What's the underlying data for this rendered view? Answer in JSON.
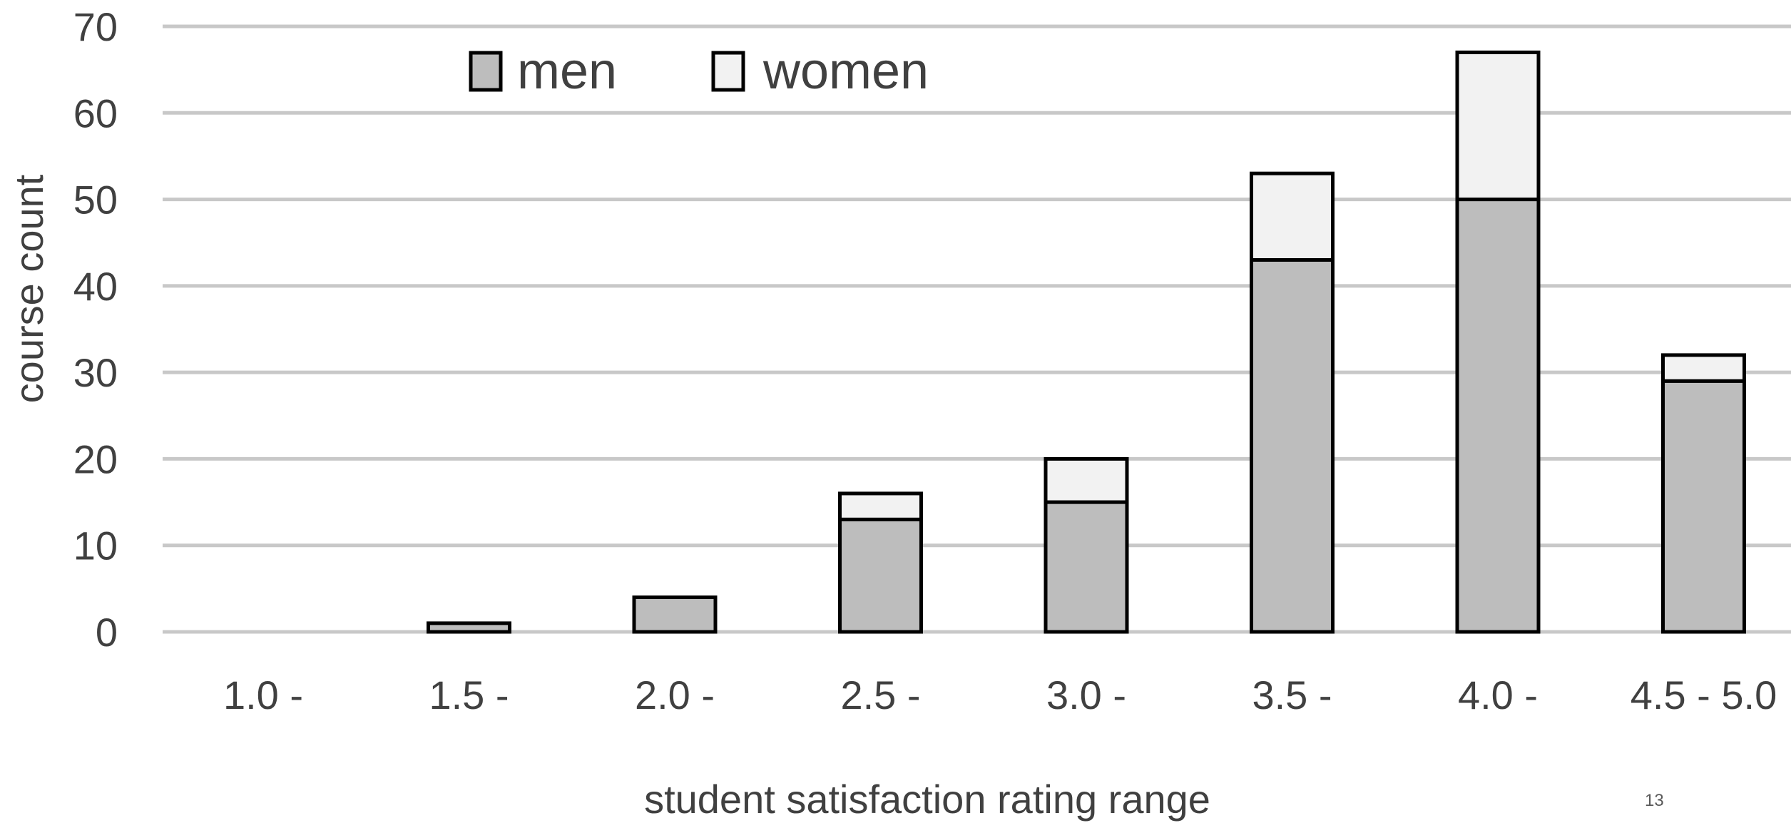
{
  "chart_data": {
    "type": "bar",
    "stacked": true,
    "categories": [
      "1.0 -",
      "1.5 -",
      "2.0 -",
      "2.5 -",
      "3.0 -",
      "3.5 -",
      "4.0 -",
      "4.5 - 5.0"
    ],
    "series": [
      {
        "name": "men",
        "values": [
          0,
          1,
          4,
          13,
          15,
          43,
          50,
          29
        ],
        "color": "#bdbdbd"
      },
      {
        "name": "women",
        "values": [
          0,
          0,
          0,
          3,
          5,
          10,
          17,
          3
        ],
        "color": "#f2f2f2"
      }
    ],
    "xlabel": "student satisfaction rating range",
    "ylabel": "course count",
    "ylim": [
      0,
      70
    ],
    "yticks": [
      "0",
      "10",
      "20",
      "30",
      "40",
      "50",
      "60",
      "70"
    ],
    "grid": true,
    "legend_position": "top-left"
  },
  "page_number": "13"
}
